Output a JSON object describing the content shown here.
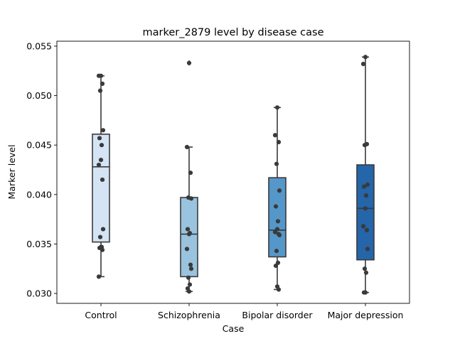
{
  "chart_data": {
    "type": "box",
    "title": "marker_2879 level by disease case",
    "xlabel": "Case",
    "ylabel": "Marker level",
    "ylim": [
      0.029,
      0.0555
    ],
    "yticks": [
      "0.030",
      "0.035",
      "0.040",
      "0.045",
      "0.050",
      "0.055"
    ],
    "ytick_values": [
      0.03,
      0.035,
      0.04,
      0.045,
      0.05,
      0.055
    ],
    "categories": [
      "Control",
      "Schizophrenia",
      "Bipolar disorder",
      "Major depression"
    ],
    "colors": [
      "#d4e4f4",
      "#99c3de",
      "#5597c9",
      "#2565aa"
    ],
    "boxes": [
      {
        "whisker_low": 0.0317,
        "q1": 0.0352,
        "median": 0.0428,
        "q3": 0.0461,
        "whisker_high": 0.052,
        "outliers": []
      },
      {
        "whisker_low": 0.0302,
        "q1": 0.0317,
        "median": 0.036,
        "q3": 0.0397,
        "whisker_high": 0.0448,
        "outliers": [
          0.0533
        ]
      },
      {
        "whisker_low": 0.0304,
        "q1": 0.0337,
        "median": 0.0364,
        "q3": 0.0417,
        "whisker_high": 0.0488,
        "outliers": []
      },
      {
        "whisker_low": 0.0301,
        "q1": 0.0334,
        "median": 0.0386,
        "q3": 0.043,
        "whisker_high": 0.0539,
        "outliers": []
      }
    ],
    "points": [
      [
        0.052,
        0.052,
        0.0512,
        0.0505,
        0.0465,
        0.0457,
        0.045,
        0.0435,
        0.043,
        0.0415,
        0.0365,
        0.0357,
        0.0347,
        0.0346,
        0.0347,
        0.0344,
        0.0317
      ],
      [
        0.0533,
        0.0448,
        0.0422,
        0.0397,
        0.0396,
        0.0365,
        0.0361,
        0.036,
        0.0345,
        0.0329,
        0.0325,
        0.0316,
        0.0309,
        0.0305,
        0.0302
      ],
      [
        0.0488,
        0.046,
        0.0453,
        0.0431,
        0.0404,
        0.0388,
        0.0373,
        0.0365,
        0.0362,
        0.036,
        0.0359,
        0.0343,
        0.0331,
        0.0328,
        0.0307,
        0.0304
      ],
      [
        0.0539,
        0.0532,
        0.0451,
        0.045,
        0.041,
        0.0408,
        0.0399,
        0.0386,
        0.0368,
        0.0364,
        0.0345,
        0.0325,
        0.0321,
        0.0301,
        0.0301
      ]
    ],
    "grid": false,
    "legend": "none"
  }
}
